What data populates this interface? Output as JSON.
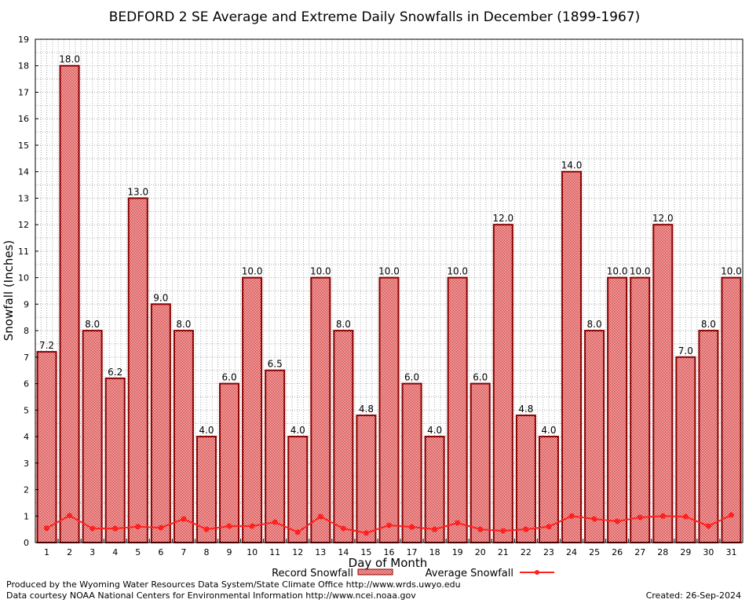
{
  "chart_data": {
    "type": "bar",
    "title": "BEDFORD 2 SE Average and Extreme Daily Snowfalls in December (1899-1967)",
    "xlabel": "Day of Month",
    "ylabel": "Snowfall (Inches)",
    "ylim": [
      0,
      19
    ],
    "yticks": [
      0,
      1,
      2,
      3,
      4,
      5,
      6,
      7,
      8,
      9,
      10,
      11,
      12,
      13,
      14,
      15,
      16,
      17,
      18,
      19
    ],
    "categories": [
      1,
      2,
      3,
      4,
      5,
      6,
      7,
      8,
      9,
      10,
      11,
      12,
      13,
      14,
      15,
      16,
      17,
      18,
      19,
      20,
      21,
      22,
      23,
      24,
      25,
      26,
      27,
      28,
      29,
      30,
      31
    ],
    "grid": true,
    "series": [
      {
        "name": "Record Snowfall",
        "type": "bar",
        "color": "#cc0000",
        "values": [
          7.2,
          18.0,
          8.0,
          6.2,
          13.0,
          9.0,
          8.0,
          4.0,
          6.0,
          10.0,
          6.5,
          4.0,
          10.0,
          8.0,
          4.8,
          10.0,
          6.0,
          4.0,
          10.0,
          6.0,
          12.0,
          4.8,
          4.0,
          14.0,
          8.0,
          10.0,
          10.0,
          12.0,
          7.0,
          8.0,
          10.0
        ]
      },
      {
        "name": "Average Snowfall",
        "type": "line",
        "color": "#ff2020",
        "values": [
          0.54,
          1.02,
          0.53,
          0.53,
          0.6,
          0.56,
          0.89,
          0.5,
          0.62,
          0.62,
          0.77,
          0.39,
          0.98,
          0.53,
          0.36,
          0.65,
          0.59,
          0.5,
          0.74,
          0.5,
          0.44,
          0.5,
          0.6,
          1.0,
          0.89,
          0.8,
          0.95,
          1.0,
          0.98,
          0.62,
          1.04
        ]
      }
    ],
    "legend": "bottom-center"
  },
  "footer": {
    "produced": "Produced by the Wyoming Water Resources Data System/State Climate Office http://www.wrds.uwyo.edu",
    "courtesy": "Data courtesy NOAA National Centers for Environmental Information http://www.ncei.noaa.gov",
    "created": "Created: 26-Sep-2024"
  }
}
